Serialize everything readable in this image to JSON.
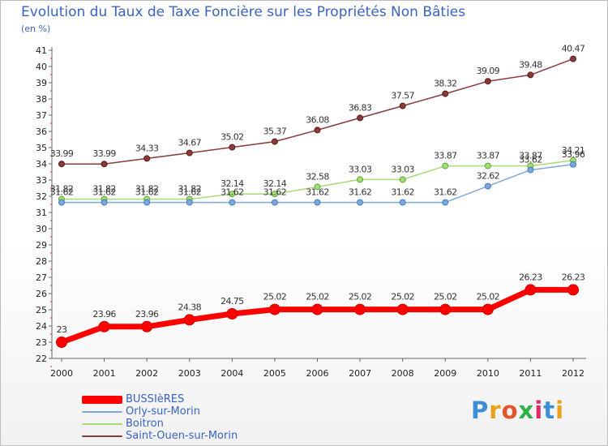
{
  "title": "Evolution du Taux de Taxe Foncière sur les Propriétés Non Bâties",
  "subtitle": "(en %)",
  "logo": {
    "text": "Proxiti",
    "colors": [
      "#3b8fd4",
      "#e8a21a",
      "#e8542a",
      "#2fb14a",
      "#d92d6a",
      "#3b8fd4",
      "#e8a21a"
    ]
  },
  "chart_data": {
    "type": "line",
    "title": "Evolution du Taux de Taxe Foncière sur les Propriétés Non Bâties",
    "ylabel": "(en %)",
    "xlabel": "",
    "ylim": [
      22,
      41
    ],
    "yticks": [
      22,
      23,
      24,
      25,
      26,
      27,
      28,
      29,
      30,
      31,
      32,
      33,
      34,
      35,
      36,
      37,
      38,
      39,
      40,
      41
    ],
    "categories": [
      "2000",
      "2001",
      "2002",
      "2003",
      "2004",
      "2005",
      "2006",
      "2007",
      "2008",
      "2009",
      "2010",
      "2011",
      "2012"
    ],
    "series": [
      {
        "name": "BUSSIèRES",
        "color": "#ff0000",
        "values": [
          23,
          23.96,
          23.96,
          24.38,
          24.75,
          25.02,
          25.02,
          25.02,
          25.02,
          25.02,
          25.02,
          26.23,
          26.23
        ],
        "labels": [
          "23",
          "23.96",
          "23.96",
          "24.38",
          "24.75",
          "25.02",
          "25.02",
          "25.02",
          "25.02",
          "25.02",
          "25.02",
          "26.23",
          "26.23"
        ]
      },
      {
        "name": "Orly-sur-Morin",
        "color": "#7fa8d9",
        "values": [
          31.62,
          31.62,
          31.62,
          31.62,
          31.62,
          31.62,
          31.62,
          31.62,
          31.62,
          31.62,
          32.62,
          33.62,
          33.96
        ],
        "labels": [
          "31.62",
          "31.62",
          "31.62",
          "31.62",
          "31.62",
          "31.62",
          "31.62",
          "31.62",
          "31.62",
          "31.62",
          "32.62",
          "33.62",
          "33.96"
        ]
      },
      {
        "name": "Boitron",
        "color": "#a7dc78",
        "values": [
          31.82,
          31.82,
          31.82,
          31.82,
          32.14,
          32.14,
          32.58,
          33.03,
          33.03,
          33.87,
          33.87,
          33.87,
          34.21
        ],
        "labels": [
          "31.82",
          "31.82",
          "31.82",
          "31.82",
          "32.14",
          "32.14",
          "32.58",
          "33.03",
          "33.03",
          "33.87",
          "33.87",
          "33.87",
          "34.21"
        ]
      },
      {
        "name": "Saint-Ouen-sur-Morin",
        "color": "#8b3a3a",
        "values": [
          33.99,
          33.99,
          34.33,
          34.67,
          35.02,
          35.37,
          36.08,
          36.83,
          37.57,
          38.32,
          39.09,
          39.48,
          40.47
        ],
        "labels": [
          "33.99",
          "33.99",
          "34.33",
          "34.67",
          "35.02",
          "35.37",
          "36.08",
          "36.83",
          "37.57",
          "38.32",
          "39.09",
          "39.48",
          "40.47"
        ]
      }
    ]
  }
}
